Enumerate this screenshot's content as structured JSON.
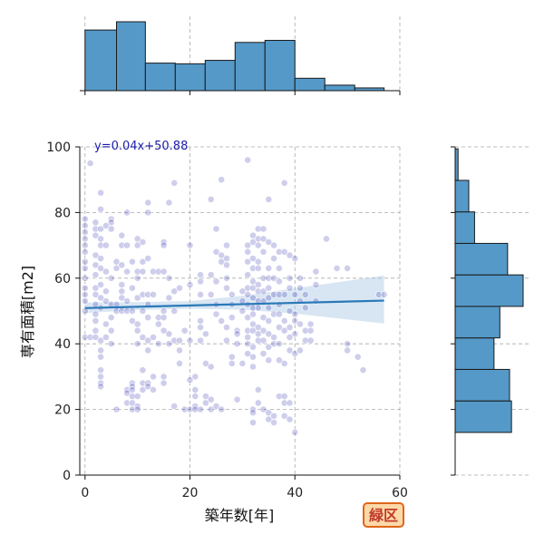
{
  "colors": {
    "bar_fill": "#5599c8",
    "bar_stroke": "#1a1a1a",
    "point_fill": "#2222aa",
    "regression_line": "#2a79b8",
    "ci_fill": "#a9c8e4",
    "grid": "#aaaaaa",
    "badge_fill": "#fcd9a8",
    "badge_stroke": "#e0661b",
    "badge_text": "#c0392b"
  },
  "badge": {
    "label": "緑区"
  },
  "chart_data": {
    "type": "scatter",
    "subtype": "jointplot",
    "title": "",
    "xlabel": "築年数[年]",
    "ylabel": "専有面積[m2]",
    "xlim": [
      -1,
      60
    ],
    "ylim": [
      0,
      100
    ],
    "xticks": [
      0,
      20,
      40,
      60
    ],
    "yticks": [
      0,
      20,
      40,
      60,
      80,
      100
    ],
    "grid": true,
    "regression": {
      "equation": "y=0.04x+50.88",
      "slope": 0.04,
      "intercept": 50.88,
      "x_range": [
        0,
        57
      ],
      "ci": [
        {
          "x": 0,
          "lo": 49.4,
          "hi": 52.6
        },
        {
          "x": 10,
          "lo": 50.3,
          "hi": 52.7
        },
        {
          "x": 20,
          "lo": 50.7,
          "hi": 53.0
        },
        {
          "x": 30,
          "lo": 50.4,
          "hi": 54.6
        },
        {
          "x": 40,
          "lo": 49.2,
          "hi": 56.9
        },
        {
          "x": 50,
          "lo": 47.4,
          "hi": 59.2
        },
        {
          "x": 57,
          "lo": 46.2,
          "hi": 60.8
        }
      ]
    },
    "points": [
      [
        1,
        95
      ],
      [
        3,
        86
      ],
      [
        3,
        81
      ],
      [
        0,
        78
      ],
      [
        0,
        76
      ],
      [
        0,
        74
      ],
      [
        0,
        72
      ],
      [
        0,
        70
      ],
      [
        0,
        68
      ],
      [
        0,
        65
      ],
      [
        0,
        63
      ],
      [
        0,
        60
      ],
      [
        0,
        57
      ],
      [
        0,
        55
      ],
      [
        0,
        53
      ],
      [
        0,
        50
      ],
      [
        0,
        42
      ],
      [
        1,
        42
      ],
      [
        2,
        77
      ],
      [
        2,
        75
      ],
      [
        2,
        73
      ],
      [
        2,
        67
      ],
      [
        2,
        64
      ],
      [
        2,
        61
      ],
      [
        2,
        57
      ],
      [
        2,
        55
      ],
      [
        2,
        52
      ],
      [
        2,
        49
      ],
      [
        2,
        47
      ],
      [
        2,
        44
      ],
      [
        2,
        42
      ],
      [
        3,
        75
      ],
      [
        3,
        72
      ],
      [
        3,
        70
      ],
      [
        3,
        66
      ],
      [
        3,
        63
      ],
      [
        3,
        58
      ],
      [
        3,
        54
      ],
      [
        3,
        51
      ],
      [
        3,
        41
      ],
      [
        3,
        38
      ],
      [
        3,
        36
      ],
      [
        3,
        32
      ],
      [
        3,
        30
      ],
      [
        3,
        28
      ],
      [
        3,
        27
      ],
      [
        4,
        76
      ],
      [
        4,
        70
      ],
      [
        4,
        62
      ],
      [
        4,
        56
      ],
      [
        4,
        53
      ],
      [
        4,
        46
      ],
      [
        4,
        42
      ],
      [
        5,
        78
      ],
      [
        5,
        77
      ],
      [
        5,
        75
      ],
      [
        5,
        60
      ],
      [
        5,
        52
      ],
      [
        5,
        48
      ],
      [
        5,
        44
      ],
      [
        5,
        40
      ],
      [
        6,
        65
      ],
      [
        6,
        63
      ],
      [
        6,
        52
      ],
      [
        6,
        50
      ],
      [
        6,
        20
      ],
      [
        7,
        73
      ],
      [
        7,
        70
      ],
      [
        7,
        64
      ],
      [
        7,
        58
      ],
      [
        7,
        56
      ],
      [
        7,
        54
      ],
      [
        7,
        50
      ],
      [
        8,
        80
      ],
      [
        8,
        70
      ],
      [
        8,
        62
      ],
      [
        8,
        53
      ],
      [
        8,
        50
      ],
      [
        8,
        26
      ],
      [
        8,
        25
      ],
      [
        8,
        22
      ],
      [
        9,
        65
      ],
      [
        9,
        57
      ],
      [
        9,
        50
      ],
      [
        9,
        47
      ],
      [
        9,
        28
      ],
      [
        9,
        27
      ],
      [
        9,
        26
      ],
      [
        9,
        24
      ],
      [
        9,
        22
      ],
      [
        9,
        20
      ],
      [
        10,
        72
      ],
      [
        10,
        70
      ],
      [
        10,
        62
      ],
      [
        10,
        60
      ],
      [
        10,
        54
      ],
      [
        10,
        46
      ],
      [
        10,
        44
      ],
      [
        10,
        40
      ],
      [
        10,
        24
      ],
      [
        10,
        21
      ],
      [
        10,
        20
      ],
      [
        11,
        71
      ],
      [
        11,
        65
      ],
      [
        11,
        62
      ],
      [
        11,
        55
      ],
      [
        11,
        50
      ],
      [
        11,
        42
      ],
      [
        11,
        32
      ],
      [
        11,
        28
      ],
      [
        11,
        26
      ],
      [
        12,
        83
      ],
      [
        12,
        80
      ],
      [
        12,
        66
      ],
      [
        12,
        55
      ],
      [
        12,
        52
      ],
      [
        12,
        48
      ],
      [
        12,
        41
      ],
      [
        12,
        38
      ],
      [
        12,
        28
      ],
      [
        12,
        27
      ],
      [
        13,
        62
      ],
      [
        13,
        55
      ],
      [
        13,
        42
      ],
      [
        13,
        30
      ],
      [
        13,
        26
      ],
      [
        14,
        62
      ],
      [
        14,
        48
      ],
      [
        14,
        46
      ],
      [
        14,
        40
      ],
      [
        15,
        71
      ],
      [
        15,
        70
      ],
      [
        15,
        62
      ],
      [
        15,
        50
      ],
      [
        15,
        48
      ],
      [
        15,
        44
      ],
      [
        15,
        30
      ],
      [
        15,
        28
      ],
      [
        16,
        83
      ],
      [
        16,
        60
      ],
      [
        16,
        54
      ],
      [
        16,
        43
      ],
      [
        16,
        40
      ],
      [
        17,
        89
      ],
      [
        17,
        56
      ],
      [
        17,
        50
      ],
      [
        17,
        41
      ],
      [
        17,
        21
      ],
      [
        18,
        57
      ],
      [
        18,
        41
      ],
      [
        18,
        38
      ],
      [
        18,
        34
      ],
      [
        19,
        20
      ],
      [
        19,
        44
      ],
      [
        20,
        70
      ],
      [
        20,
        58
      ],
      [
        20,
        41
      ],
      [
        20,
        20
      ],
      [
        20,
        29
      ],
      [
        21,
        26
      ],
      [
        21,
        24
      ],
      [
        21,
        21
      ],
      [
        21,
        20
      ],
      [
        21,
        30
      ],
      [
        22,
        61
      ],
      [
        22,
        59
      ],
      [
        22,
        55
      ],
      [
        22,
        47
      ],
      [
        22,
        45
      ],
      [
        22,
        41
      ],
      [
        22,
        20
      ],
      [
        23,
        43
      ],
      [
        23,
        34
      ],
      [
        23,
        24
      ],
      [
        23,
        22
      ],
      [
        24,
        84
      ],
      [
        24,
        61
      ],
      [
        24,
        55
      ],
      [
        24,
        33
      ],
      [
        24,
        23
      ],
      [
        24,
        20
      ],
      [
        25,
        75
      ],
      [
        25,
        68
      ],
      [
        25,
        59
      ],
      [
        25,
        52
      ],
      [
        25,
        49
      ],
      [
        25,
        21
      ],
      [
        26,
        90
      ],
      [
        26,
        67
      ],
      [
        26,
        65
      ],
      [
        26,
        47
      ],
      [
        26,
        20
      ],
      [
        27,
        70
      ],
      [
        27,
        66
      ],
      [
        27,
        64
      ],
      [
        27,
        60
      ],
      [
        27,
        57
      ],
      [
        27,
        45
      ],
      [
        27,
        41
      ],
      [
        28,
        55
      ],
      [
        28,
        52
      ],
      [
        28,
        48
      ],
      [
        28,
        36
      ],
      [
        28,
        34
      ],
      [
        29,
        44
      ],
      [
        29,
        43
      ],
      [
        29,
        40
      ],
      [
        29,
        23
      ],
      [
        30,
        56
      ],
      [
        30,
        53
      ],
      [
        30,
        50
      ],
      [
        30,
        34
      ],
      [
        31,
        96
      ],
      [
        31,
        70
      ],
      [
        31,
        68
      ],
      [
        31,
        65
      ],
      [
        31,
        61
      ],
      [
        31,
        57
      ],
      [
        31,
        55
      ],
      [
        31,
        52
      ],
      [
        31,
        48
      ],
      [
        31,
        44
      ],
      [
        31,
        42
      ],
      [
        31,
        40
      ],
      [
        31,
        37
      ],
      [
        32,
        73
      ],
      [
        32,
        71
      ],
      [
        32,
        66
      ],
      [
        32,
        63
      ],
      [
        32,
        59
      ],
      [
        32,
        57
      ],
      [
        32,
        54
      ],
      [
        32,
        51
      ],
      [
        32,
        49
      ],
      [
        32,
        46
      ],
      [
        32,
        44
      ],
      [
        32,
        39
      ],
      [
        32,
        36
      ],
      [
        32,
        33
      ],
      [
        32,
        20
      ],
      [
        32,
        19
      ],
      [
        32,
        16
      ],
      [
        33,
        75
      ],
      [
        33,
        72
      ],
      [
        33,
        70
      ],
      [
        33,
        65
      ],
      [
        33,
        63
      ],
      [
        33,
        58
      ],
      [
        33,
        56
      ],
      [
        33,
        53
      ],
      [
        33,
        51
      ],
      [
        33,
        45
      ],
      [
        33,
        43
      ],
      [
        33,
        41
      ],
      [
        33,
        26
      ],
      [
        33,
        22
      ],
      [
        34,
        75
      ],
      [
        34,
        72
      ],
      [
        34,
        68
      ],
      [
        34,
        60
      ],
      [
        34,
        56
      ],
      [
        34,
        53
      ],
      [
        34,
        48
      ],
      [
        34,
        44
      ],
      [
        34,
        41
      ],
      [
        34,
        37
      ],
      [
        34,
        20
      ],
      [
        35,
        84
      ],
      [
        35,
        71
      ],
      [
        35,
        63
      ],
      [
        35,
        60
      ],
      [
        35,
        57
      ],
      [
        35,
        54
      ],
      [
        35,
        51
      ],
      [
        35,
        47
      ],
      [
        35,
        43
      ],
      [
        35,
        39
      ],
      [
        35,
        35
      ],
      [
        35,
        19
      ],
      [
        35,
        17
      ],
      [
        36,
        70
      ],
      [
        36,
        66
      ],
      [
        36,
        60
      ],
      [
        36,
        55
      ],
      [
        36,
        49
      ],
      [
        36,
        42
      ],
      [
        36,
        40
      ],
      [
        36,
        18
      ],
      [
        36,
        16
      ],
      [
        37,
        68
      ],
      [
        37,
        63
      ],
      [
        37,
        59
      ],
      [
        37,
        55
      ],
      [
        37,
        52
      ],
      [
        37,
        49
      ],
      [
        37,
        45
      ],
      [
        37,
        40
      ],
      [
        37,
        35
      ],
      [
        37,
        24
      ],
      [
        38,
        89
      ],
      [
        38,
        68
      ],
      [
        38,
        55
      ],
      [
        38,
        47
      ],
      [
        38,
        44
      ],
      [
        38,
        34
      ],
      [
        38,
        24
      ],
      [
        38,
        22
      ],
      [
        38,
        18
      ],
      [
        39,
        67
      ],
      [
        39,
        60
      ],
      [
        39,
        57
      ],
      [
        39,
        50
      ],
      [
        39,
        45
      ],
      [
        39,
        42
      ],
      [
        39,
        38
      ],
      [
        39,
        22
      ],
      [
        39,
        17
      ],
      [
        40,
        66
      ],
      [
        40,
        55
      ],
      [
        40,
        49
      ],
      [
        40,
        47
      ],
      [
        40,
        43
      ],
      [
        40,
        37
      ],
      [
        40,
        13
      ],
      [
        41,
        60
      ],
      [
        41,
        57
      ],
      [
        41,
        53
      ],
      [
        41,
        46
      ],
      [
        41,
        38
      ],
      [
        42,
        55
      ],
      [
        42,
        51
      ],
      [
        42,
        44
      ],
      [
        42,
        41
      ],
      [
        43,
        46
      ],
      [
        43,
        44
      ],
      [
        43,
        41
      ],
      [
        44,
        62
      ],
      [
        44,
        58
      ],
      [
        44,
        53
      ],
      [
        46,
        72
      ],
      [
        48,
        63
      ],
      [
        50,
        63
      ],
      [
        50,
        40
      ],
      [
        50,
        38
      ],
      [
        52,
        36
      ],
      [
        53,
        32
      ],
      [
        56,
        55
      ],
      [
        57,
        55
      ]
    ],
    "marginal_x": {
      "bins": [
        [
          0,
          6
        ],
        [
          6,
          11.5
        ],
        [
          11.5,
          17.2
        ],
        [
          17.2,
          22.9
        ],
        [
          22.9,
          28.6
        ],
        [
          28.6,
          34.3
        ],
        [
          34.3,
          40
        ],
        [
          40,
          45.7
        ],
        [
          45.7,
          51.4
        ],
        [
          51.4,
          57
        ]
      ],
      "counts": [
        88,
        100,
        40,
        39,
        44,
        70,
        73,
        18,
        8,
        4
      ]
    },
    "marginal_y": {
      "bins": [
        [
          13,
          22.6
        ],
        [
          22.6,
          32.2
        ],
        [
          32.2,
          41.8
        ],
        [
          41.8,
          51.4
        ],
        [
          51.4,
          61
        ],
        [
          61,
          70.6
        ],
        [
          70.6,
          80.2
        ],
        [
          80.2,
          89.8
        ],
        [
          89.8,
          99.4
        ]
      ],
      "counts": [
        58,
        56,
        40,
        46,
        70,
        54,
        20,
        14,
        3
      ]
    }
  }
}
